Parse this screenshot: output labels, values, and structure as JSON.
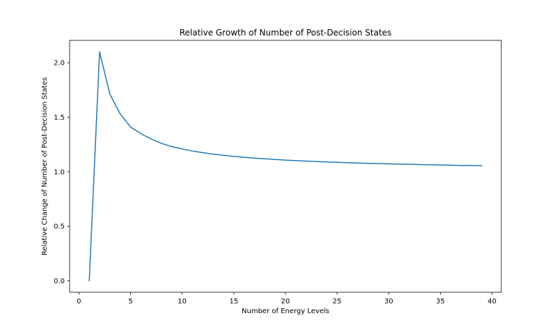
{
  "chart_data": {
    "type": "line",
    "title": "Relative Growth of Number of Post-Decision States",
    "xlabel": "Number of Energy Levels",
    "ylabel": "Relative Change of Number of Post-Decision States",
    "xlim": [
      -0.9,
      40.9
    ],
    "ylim": [
      -0.105,
      2.205
    ],
    "xticks": [
      0,
      5,
      10,
      15,
      20,
      25,
      30,
      35,
      40
    ],
    "xtick_labels": [
      "0",
      "5",
      "10",
      "15",
      "20",
      "25",
      "30",
      "35",
      "40"
    ],
    "yticks": [
      0.0,
      0.5,
      1.0,
      1.5,
      2.0
    ],
    "ytick_labels": [
      "0.0",
      "0.5",
      "1.0",
      "1.5",
      "2.0"
    ],
    "grid": false,
    "series": [
      {
        "color": "#1f77b4",
        "x": [
          1,
          2,
          3,
          4,
          5,
          6,
          7,
          8,
          9,
          10,
          11,
          12,
          13,
          14,
          15,
          16,
          17,
          18,
          19,
          20,
          21,
          22,
          23,
          24,
          25,
          26,
          27,
          28,
          29,
          30,
          31,
          32,
          33,
          34,
          35,
          36,
          37,
          38,
          39
        ],
        "y": [
          0.0,
          2.1,
          1.71,
          1.53,
          1.41,
          1.35,
          1.3,
          1.26,
          1.23,
          1.21,
          1.19,
          1.175,
          1.162,
          1.151,
          1.141,
          1.133,
          1.125,
          1.119,
          1.113,
          1.107,
          1.102,
          1.098,
          1.094,
          1.09,
          1.087,
          1.083,
          1.08,
          1.077,
          1.075,
          1.072,
          1.07,
          1.068,
          1.066,
          1.064,
          1.062,
          1.06,
          1.058,
          1.057,
          1.055
        ]
      }
    ]
  }
}
